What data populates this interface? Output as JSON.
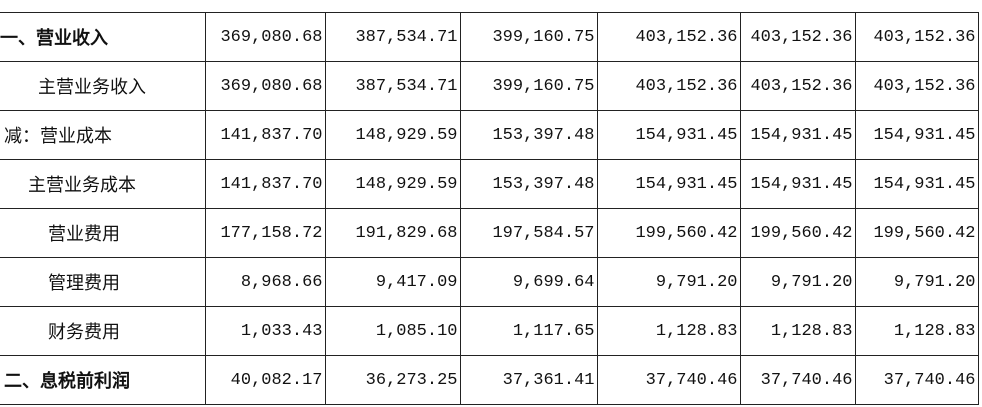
{
  "table": {
    "rows": [
      [
        "一、营业收入",
        "369,080.68",
        "387,534.71",
        "399,160.75",
        "403,152.36",
        "403,152.36",
        "403,152.36"
      ],
      [
        "主营业务收入",
        "369,080.68",
        "387,534.71",
        "399,160.75",
        "403,152.36",
        "403,152.36",
        "403,152.36"
      ],
      [
        "减：营业成本",
        "141,837.70",
        "148,929.59",
        "153,397.48",
        "154,931.45",
        "154,931.45",
        "154,931.45"
      ],
      [
        "主营业务成本",
        "141,837.70",
        "148,929.59",
        "153,397.48",
        "154,931.45",
        "154,931.45",
        "154,931.45"
      ],
      [
        "营业费用",
        "177,158.72",
        "191,829.68",
        "197,584.57",
        "199,560.42",
        "199,560.42",
        "199,560.42"
      ],
      [
        "管理费用",
        "8,968.66",
        "9,417.09",
        "9,699.64",
        "9,791.20",
        "9,791.20",
        "9,791.20"
      ],
      [
        "财务费用",
        "1,033.43",
        "1,085.10",
        "1,117.65",
        "1,128.83",
        "1,128.83",
        "1,128.83"
      ],
      [
        "二、息税前利润",
        "40,082.17",
        "36,273.25",
        "37,361.41",
        "37,740.46",
        "37,740.46",
        "37,740.46"
      ]
    ]
  }
}
